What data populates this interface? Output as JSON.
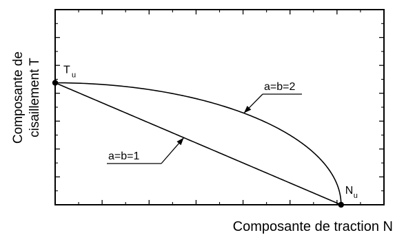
{
  "chart_data": {
    "type": "line",
    "title": "",
    "xlabel": "Composante de traction N",
    "ylabel_line1": "Composante de",
    "ylabel_line2": "cisaillement T",
    "xlim": [
      0,
      1.15
    ],
    "ylim": [
      0,
      1.6
    ],
    "grid": false,
    "series": [
      {
        "name": "a=b=1",
        "exponent": 1,
        "x": [
          0,
          0.1,
          0.2,
          0.3,
          0.4,
          0.5,
          0.6,
          0.7,
          0.8,
          0.9,
          1.0
        ],
        "y": [
          1.0,
          0.9,
          0.8,
          0.7,
          0.6,
          0.5,
          0.4,
          0.3,
          0.2,
          0.1,
          0.0
        ]
      },
      {
        "name": "a=b=2",
        "exponent": 2,
        "x": [
          0,
          0.1,
          0.2,
          0.3,
          0.4,
          0.5,
          0.6,
          0.7,
          0.8,
          0.9,
          0.95,
          1.0
        ],
        "y": [
          1.0,
          0.995,
          0.98,
          0.954,
          0.917,
          0.866,
          0.8,
          0.714,
          0.6,
          0.436,
          0.312,
          0.0
        ]
      }
    ],
    "points": [
      {
        "label_main": "T",
        "label_sub": "u",
        "x": 0,
        "y": 1.0
      },
      {
        "label_main": "N",
        "label_sub": "u",
        "x": 1.0,
        "y": 0.0
      }
    ],
    "annotations": [
      {
        "text": "a=b=1",
        "series": "a=b=1"
      },
      {
        "text": "a=b=2",
        "series": "a=b=2"
      }
    ],
    "x_major_ticks": 7,
    "y_major_ticks": 7
  }
}
